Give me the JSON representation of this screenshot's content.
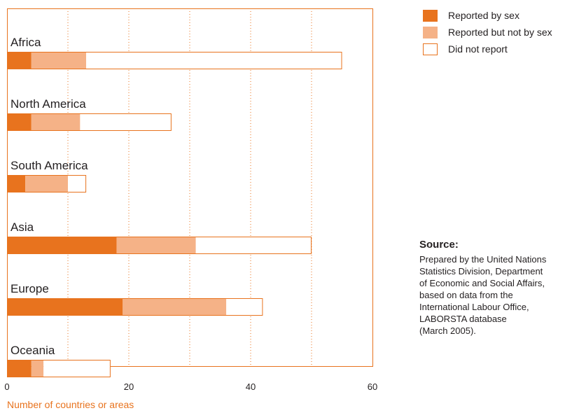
{
  "colors": {
    "reported_by_sex": "#e8731e",
    "reported_not_by_sex": "#f5b287",
    "did_not_report": "#ffffff",
    "frame": "#e8731e",
    "axis_title": "#e8731e"
  },
  "legend": [
    {
      "label": "Reported by sex",
      "color": "#e8731e"
    },
    {
      "label": "Reported but not by sex",
      "color": "#f5b287"
    },
    {
      "label": "Did not report",
      "color": "#ffffff"
    }
  ],
  "source": {
    "title": "Source:",
    "lines": [
      "Prepared by the United Nations",
      "Statistics Division, Department",
      "of Economic and Social Affairs,",
      "based on data from the",
      "International Labour Office,",
      "LABORSTA database",
      "(March 2005)."
    ]
  },
  "chart_data": {
    "type": "bar",
    "orientation": "horizontal",
    "stacked": true,
    "categories": [
      "Africa",
      "North America",
      "South America",
      "Asia",
      "Europe",
      "Oceania"
    ],
    "series": [
      {
        "name": "Reported by sex",
        "values": [
          4,
          4,
          3,
          18,
          19,
          4
        ]
      },
      {
        "name": "Reported but not by sex",
        "values": [
          9,
          8,
          7,
          13,
          17,
          2
        ]
      },
      {
        "name": "Did not report",
        "values": [
          42,
          15,
          3,
          19,
          6,
          11
        ]
      }
    ],
    "xlim": [
      0,
      60
    ],
    "xticks": [
      0,
      20,
      40,
      60
    ],
    "xlabel": "Number of countries or areas",
    "grid": "vertical dotted at every 10"
  }
}
